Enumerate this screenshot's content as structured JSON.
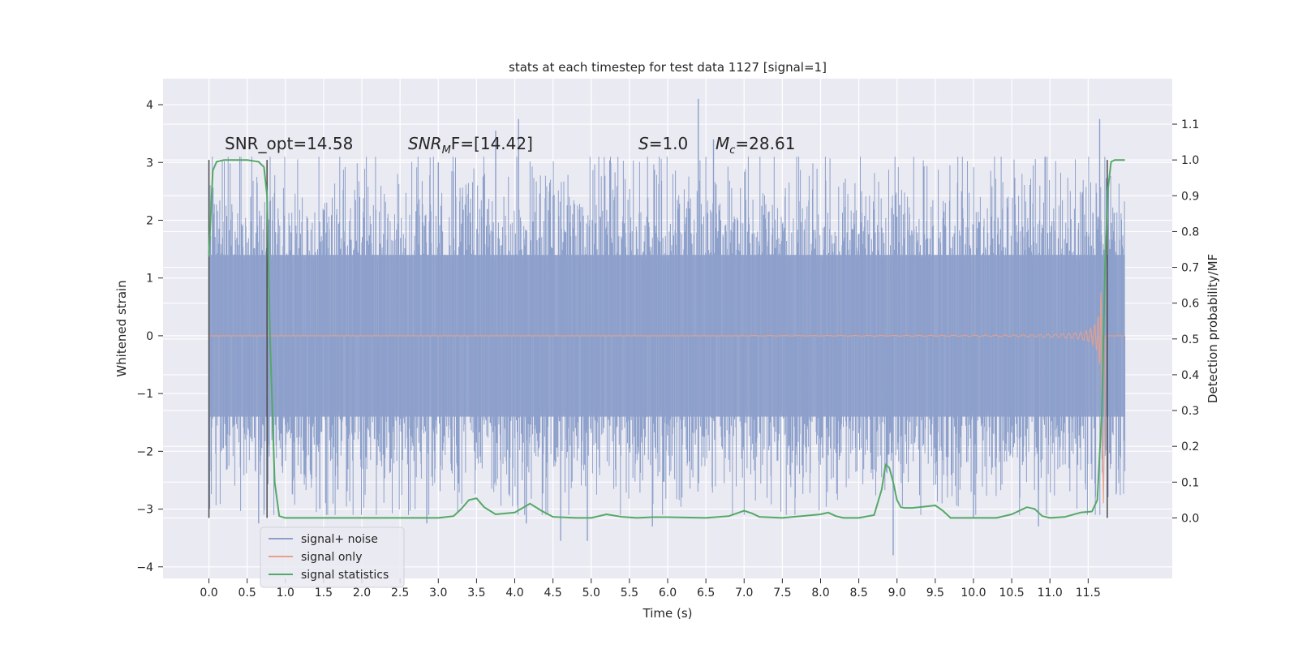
{
  "chart_data": {
    "type": "line",
    "title": "stats at each timestep for test data 1127 [signal=1]",
    "xlabel": "Time (s)",
    "ylabel": "Whitened strain",
    "y2label": "Detection probability/MF",
    "xlim": [
      -0.6,
      12.6
    ],
    "ylim": [
      -4.2,
      4.45
    ],
    "y2lim": [
      -0.169,
      1.227
    ],
    "grid": true,
    "background": "#eaeaf2",
    "legend_position": "lower-left",
    "x_ticks": [
      0.0,
      0.5,
      1.0,
      1.5,
      2.0,
      2.5,
      3.0,
      3.5,
      4.0,
      4.5,
      5.0,
      5.5,
      6.0,
      6.5,
      7.0,
      7.5,
      8.0,
      8.5,
      9.0,
      9.5,
      10.0,
      10.5,
      11.0,
      11.5
    ],
    "x_tick_labels": [
      "0.0",
      "0.5",
      "1.0",
      "1.5",
      "2.0",
      "2.5",
      "3.0",
      "3.5",
      "4.0",
      "4.5",
      "5.0",
      "5.5",
      "6.0",
      "6.5",
      "7.0",
      "7.5",
      "8.0",
      "8.5",
      "9.0",
      "9.5",
      "10.0",
      "10.5",
      "11.0",
      "11.5"
    ],
    "y_ticks": [
      -4,
      -3,
      -2,
      -1,
      0,
      1,
      2,
      3,
      4
    ],
    "y_tick_labels": [
      "−4",
      "−3",
      "−2",
      "−1",
      "0",
      "1",
      "2",
      "3",
      "4"
    ],
    "y2_ticks": [
      0.0,
      0.1,
      0.2,
      0.3,
      0.4,
      0.5,
      0.6,
      0.7,
      0.8,
      0.9,
      1.0,
      1.1
    ],
    "y2_tick_labels": [
      "0.0",
      "0.1",
      "0.2",
      "0.3",
      "0.4",
      "0.5",
      "0.6",
      "0.7",
      "0.8",
      "0.9",
      "1.0",
      "1.1"
    ],
    "annotations": [
      {
        "text": "SNR_opt=14.58"
      },
      {
        "prefix": "SNR",
        "sub": "M",
        "suffix": "F=[14.42]"
      },
      {
        "prefix": "S",
        "sub": "",
        "suffix": "=1.0"
      },
      {
        "prefix": "M",
        "sub": "c",
        "suffix": "=28.61"
      }
    ],
    "vertical_markers_x": [
      0.0,
      0.76,
      11.75
    ],
    "signal_only_spike_x": 11.68,
    "series": [
      {
        "name": "signal+ noise",
        "color": "#8da0cb",
        "t_start": 0.0,
        "t_end": 11.98,
        "band_abs": 1.4,
        "notable_peaks": [
          [
            0.65,
            -3.25
          ],
          [
            1.45,
            -3.0
          ],
          [
            2.85,
            -3.25
          ],
          [
            3.0,
            3.0
          ],
          [
            3.75,
            3.55
          ],
          [
            4.05,
            3.75
          ],
          [
            4.15,
            -3.25
          ],
          [
            4.6,
            -3.55
          ],
          [
            4.95,
            -3.55
          ],
          [
            5.8,
            -3.3
          ],
          [
            6.4,
            4.1
          ],
          [
            6.6,
            3.4
          ],
          [
            8.95,
            -3.8
          ],
          [
            10.0,
            -3.15
          ],
          [
            10.85,
            -3.3
          ],
          [
            11.65,
            3.75
          ]
        ]
      },
      {
        "name": "signal only",
        "color": "#e8a08a",
        "chirp_start_x": 7.0,
        "peak_x": 11.68,
        "peak_amplitude": 3.2
      },
      {
        "name": "signal statistics",
        "color": "#55a868",
        "axis": "right",
        "x": [
          0.0,
          0.05,
          0.1,
          0.2,
          0.3,
          0.5,
          0.65,
          0.72,
          0.76,
          0.8,
          0.86,
          0.92,
          1.0,
          1.2,
          1.5,
          2.0,
          2.5,
          3.0,
          3.2,
          3.3,
          3.4,
          3.5,
          3.6,
          3.75,
          4.0,
          4.2,
          4.35,
          4.5,
          4.8,
          5.0,
          5.2,
          5.4,
          5.6,
          5.8,
          6.0,
          6.5,
          6.8,
          7.0,
          7.1,
          7.2,
          7.5,
          8.0,
          8.1,
          8.2,
          8.3,
          8.5,
          8.7,
          8.8,
          8.85,
          8.9,
          8.95,
          9.0,
          9.05,
          9.1,
          9.2,
          9.5,
          9.6,
          9.7,
          9.8,
          10.0,
          10.3,
          10.5,
          10.7,
          10.8,
          10.85,
          10.9,
          11.0,
          11.2,
          11.4,
          11.55,
          11.62,
          11.68,
          11.72,
          11.76,
          11.8,
          11.85,
          11.9,
          11.98
        ],
        "values": [
          0.73,
          0.97,
          0.995,
          1.0,
          1.0,
          1.0,
          0.995,
          0.98,
          0.9,
          0.5,
          0.1,
          0.005,
          0.0,
          0.0,
          0.0,
          0.0,
          0.0,
          0.0,
          0.005,
          0.025,
          0.05,
          0.055,
          0.03,
          0.01,
          0.015,
          0.04,
          0.02,
          0.003,
          0.0,
          0.0,
          0.01,
          0.003,
          0.0,
          0.002,
          0.002,
          0.0,
          0.005,
          0.02,
          0.013,
          0.003,
          0.0,
          0.01,
          0.015,
          0.005,
          0.0,
          0.0,
          0.008,
          0.08,
          0.15,
          0.14,
          0.1,
          0.05,
          0.03,
          0.028,
          0.028,
          0.035,
          0.02,
          0.0,
          0.0,
          0.0,
          0.0,
          0.01,
          0.03,
          0.025,
          0.015,
          0.005,
          0.0,
          0.003,
          0.015,
          0.018,
          0.05,
          0.3,
          0.7,
          0.92,
          0.995,
          1.0,
          1.0,
          1.0
        ]
      }
    ]
  }
}
